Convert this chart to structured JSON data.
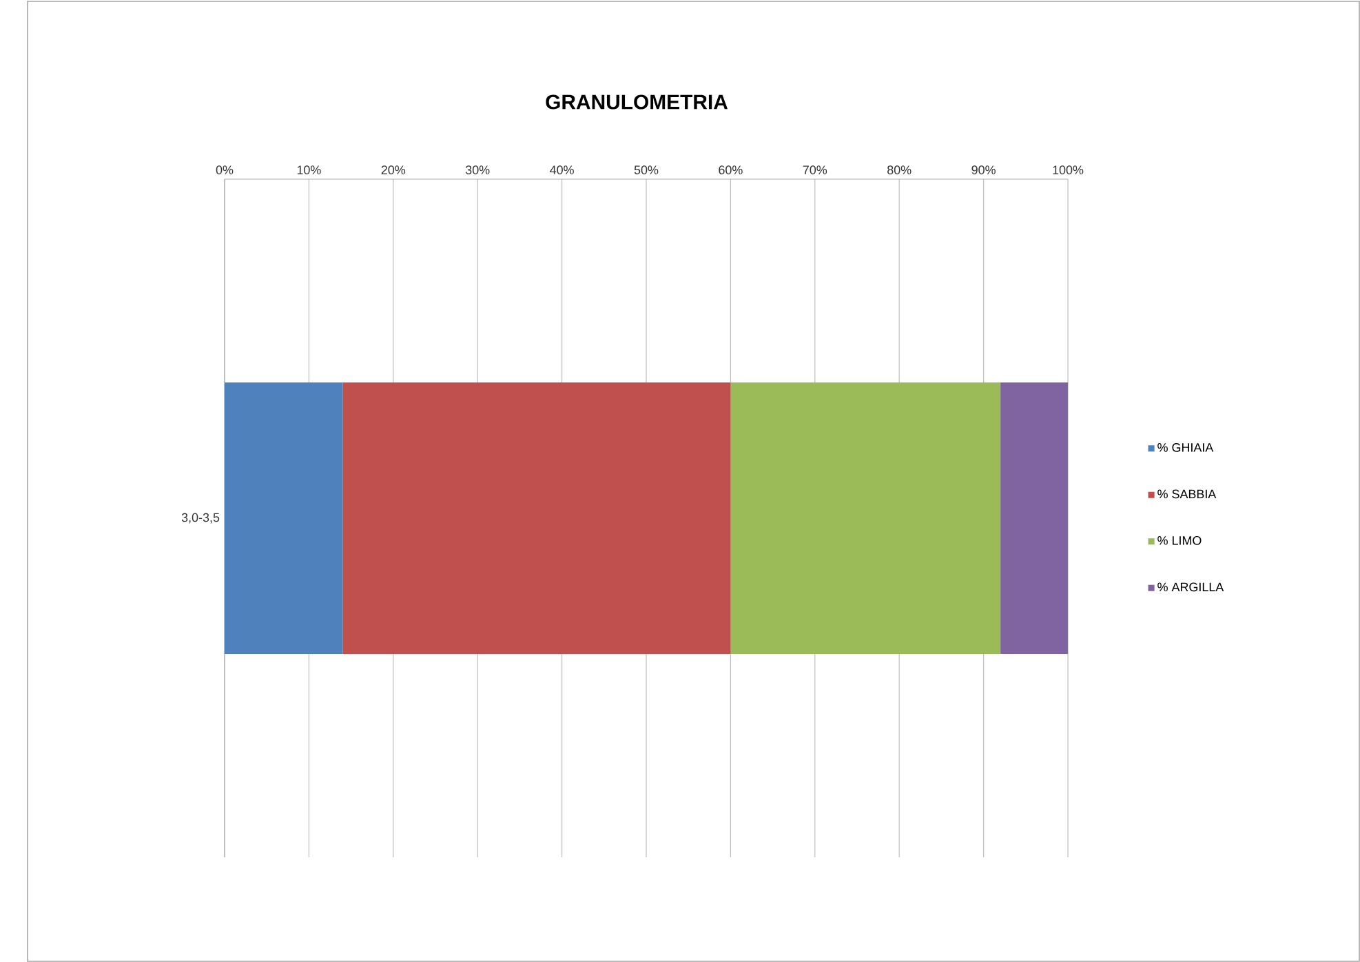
{
  "chart_data": {
    "type": "bar",
    "orientation": "horizontal",
    "stacked": true,
    "title": "GRANULOMETRIA",
    "categories": [
      "3,0-3,5"
    ],
    "series": [
      {
        "name": "% GHIAIA",
        "color": "#4f81bd",
        "values": [
          14
        ]
      },
      {
        "name": "% SABBIA",
        "color": "#c0504d",
        "values": [
          46
        ]
      },
      {
        "name": "% LIMO",
        "color": "#9bbb59",
        "values": [
          32
        ]
      },
      {
        "name": "% ARGILLA",
        "color": "#8064a2",
        "values": [
          8
        ]
      }
    ],
    "xlim": [
      0,
      100
    ],
    "xticks": [
      {
        "value": 0,
        "label": "0%"
      },
      {
        "value": 10,
        "label": "10%"
      },
      {
        "value": 20,
        "label": "20%"
      },
      {
        "value": 30,
        "label": "30%"
      },
      {
        "value": 40,
        "label": "40%"
      },
      {
        "value": 50,
        "label": "50%"
      },
      {
        "value": 60,
        "label": "60%"
      },
      {
        "value": 70,
        "label": "70%"
      },
      {
        "value": 80,
        "label": "80%"
      },
      {
        "value": 90,
        "label": "90%"
      },
      {
        "value": 100,
        "label": "100%"
      }
    ],
    "grid": "x",
    "legend": "right"
  }
}
